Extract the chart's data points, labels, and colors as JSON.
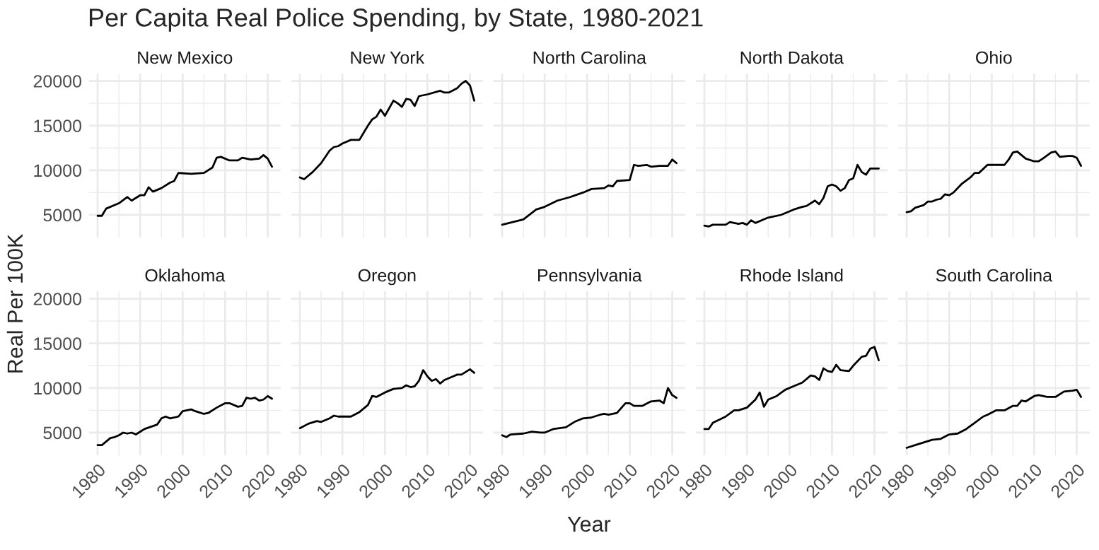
{
  "chart_data": [
    {
      "type": "line",
      "title": "New Mexico",
      "annotations": [
        "Per Capita Real Police Spending, by State, 1980-2021"
      ],
      "color": "#000000",
      "x": [
        1980,
        1981,
        1982,
        1985,
        1987,
        1988,
        1990,
        1991,
        1992,
        1993,
        1995,
        1997,
        1998,
        1999,
        2002,
        2005,
        2007,
        2008,
        2009,
        2011,
        2013,
        2014,
        2016,
        2018,
        2019,
        2020,
        2021
      ],
      "values": [
        4900,
        4900,
        5700,
        6300,
        7000,
        6600,
        7200,
        7200,
        8100,
        7600,
        8000,
        8600,
        8800,
        9700,
        9600,
        9700,
        10300,
        11400,
        11500,
        11100,
        11100,
        11400,
        11200,
        11300,
        11700,
        11300,
        10400
      ],
      "xlim": [
        1977.95,
        2023.05
      ],
      "ylim": [
        2465,
        20835
      ],
      "xticks": [
        1980,
        1990,
        2000,
        2010,
        2020
      ],
      "yticks": [
        5000,
        10000,
        15000,
        20000
      ],
      "grid": true,
      "tick_labels": "y"
    },
    {
      "type": "line",
      "title": "New York",
      "color": "#000000",
      "x": [
        1980,
        1981,
        1983,
        1985,
        1987,
        1988,
        1989,
        1990,
        1992,
        1994,
        1996,
        1997,
        1998,
        1999,
        2000,
        2002,
        2003,
        2004,
        2005,
        2006,
        2007,
        2008,
        2010,
        2013,
        2014,
        2015,
        2017,
        2018,
        2019,
        2020,
        2021
      ],
      "values": [
        9200,
        9000,
        9800,
        10800,
        12200,
        12600,
        12700,
        13000,
        13400,
        13400,
        15000,
        15700,
        16000,
        16800,
        16100,
        17800,
        17500,
        17100,
        18000,
        17900,
        17200,
        18300,
        18500,
        18900,
        18700,
        18700,
        19200,
        19700,
        20000,
        19500,
        17800
      ],
      "xlim": [
        1977.95,
        2023.05
      ],
      "ylim": [
        2465,
        20835
      ],
      "xticks": [
        1980,
        1990,
        2000,
        2010,
        2020
      ],
      "yticks": [
        5000,
        10000,
        15000,
        20000
      ],
      "grid": true,
      "tick_labels": false
    },
    {
      "type": "line",
      "title": "North Carolina",
      "color": "#000000",
      "x": [
        1980,
        1985,
        1988,
        1990,
        1993,
        1996,
        1999,
        2001,
        2004,
        2005,
        2006,
        2007,
        2010,
        2011,
        2012,
        2014,
        2015,
        2017,
        2019,
        2020,
        2021
      ],
      "values": [
        3900,
        4500,
        5600,
        5900,
        6600,
        7000,
        7500,
        7900,
        8000,
        8300,
        8200,
        8800,
        8900,
        10600,
        10500,
        10600,
        10400,
        10500,
        10500,
        11200,
        10800
      ],
      "xlim": [
        1977.95,
        2023.05
      ],
      "ylim": [
        2465,
        20835
      ],
      "xticks": [
        1980,
        1990,
        2000,
        2010,
        2020
      ],
      "yticks": [
        5000,
        10000,
        15000,
        20000
      ],
      "grid": true,
      "tick_labels": false
    },
    {
      "type": "line",
      "title": "North Dakota",
      "color": "#000000",
      "x": [
        1980,
        1981,
        1982,
        1985,
        1986,
        1988,
        1989,
        1990,
        1991,
        1992,
        1994,
        1995,
        1998,
        2001,
        2003,
        2004,
        2006,
        2007,
        2008,
        2009,
        2010,
        2011,
        2012,
        2013,
        2014,
        2015,
        2016,
        2017,
        2018,
        2019,
        2021
      ],
      "values": [
        3800,
        3700,
        3900,
        3900,
        4200,
        4000,
        4100,
        3900,
        4400,
        4100,
        4500,
        4700,
        5000,
        5600,
        5900,
        6000,
        6600,
        6200,
        6900,
        8200,
        8400,
        8200,
        7700,
        8000,
        8900,
        9100,
        10600,
        9800,
        9500,
        10200,
        10200
      ],
      "xlim": [
        1977.95,
        2023.05
      ],
      "ylim": [
        2465,
        20835
      ],
      "xticks": [
        1980,
        1990,
        2000,
        2010,
        2020
      ],
      "yticks": [
        5000,
        10000,
        15000,
        20000
      ],
      "grid": true,
      "tick_labels": false
    },
    {
      "type": "line",
      "title": "Ohio",
      "color": "#000000",
      "x": [
        1980,
        1981,
        1982,
        1984,
        1985,
        1986,
        1987,
        1988,
        1989,
        1990,
        1991,
        1993,
        1995,
        1996,
        1997,
        1999,
        2003,
        2004,
        2005,
        2006,
        2008,
        2010,
        2011,
        2012,
        2014,
        2015,
        2016,
        2018,
        2019,
        2020,
        2021
      ],
      "values": [
        5300,
        5400,
        5800,
        6100,
        6500,
        6500,
        6700,
        6800,
        7300,
        7200,
        7500,
        8500,
        9200,
        9700,
        9700,
        10600,
        10600,
        11200,
        12000,
        12100,
        11300,
        11000,
        11000,
        11300,
        12000,
        12100,
        11500,
        11600,
        11600,
        11400,
        10500
      ],
      "xlim": [
        1977.95,
        2023.05
      ],
      "ylim": [
        2465,
        20835
      ],
      "xticks": [
        1980,
        1990,
        2000,
        2010,
        2020
      ],
      "yticks": [
        5000,
        10000,
        15000,
        20000
      ],
      "grid": true,
      "tick_labels": false
    },
    {
      "type": "line",
      "title": "Oklahoma",
      "ylabel": "Real Per 100K",
      "color": "#000000",
      "x": [
        1980,
        1981,
        1983,
        1984,
        1985,
        1986,
        1987,
        1988,
        1989,
        1990,
        1991,
        1994,
        1995,
        1996,
        1997,
        1999,
        2000,
        2002,
        2003,
        2005,
        2006,
        2008,
        2010,
        2011,
        2013,
        2014,
        2015,
        2016,
        2017,
        2018,
        2019,
        2020,
        2021
      ],
      "values": [
        3600,
        3600,
        4400,
        4500,
        4700,
        5000,
        4900,
        5000,
        4800,
        5100,
        5400,
        5900,
        6600,
        6800,
        6600,
        6800,
        7400,
        7600,
        7400,
        7100,
        7200,
        7800,
        8300,
        8300,
        7900,
        8000,
        8900,
        8800,
        8900,
        8600,
        8700,
        9100,
        8800
      ],
      "xlim": [
        1977.95,
        2023.05
      ],
      "ylim": [
        2465,
        20835
      ],
      "xticks": [
        1980,
        1990,
        2000,
        2010,
        2020
      ],
      "yticks": [
        5000,
        10000,
        15000,
        20000
      ],
      "grid": true
    },
    {
      "type": "line",
      "title": "Oregon",
      "color": "#000000",
      "x": [
        1980,
        1982,
        1984,
        1985,
        1987,
        1988,
        1989,
        1990,
        1992,
        1994,
        1996,
        1997,
        1998,
        2000,
        2002,
        2004,
        2005,
        2006,
        2007,
        2008,
        2009,
        2010,
        2011,
        2012,
        2013,
        2014,
        2016,
        2017,
        2018,
        2020,
        2021
      ],
      "values": [
        5500,
        6000,
        6300,
        6200,
        6600,
        6900,
        6800,
        6800,
        6800,
        7300,
        8100,
        9100,
        9000,
        9500,
        9900,
        10000,
        10300,
        10100,
        10200,
        10800,
        12000,
        11300,
        10800,
        11000,
        10500,
        10900,
        11300,
        11500,
        11500,
        12100,
        11700
      ],
      "xlim": [
        1977.95,
        2023.05
      ],
      "ylim": [
        2465,
        20835
      ],
      "xticks": [
        1980,
        1990,
        2000,
        2010,
        2020
      ],
      "yticks": [
        5000,
        10000,
        15000,
        20000
      ],
      "grid": true,
      "tick_labels": "x"
    },
    {
      "type": "line",
      "title": "Pennsylvania",
      "xlabel": "Year",
      "color": "#000000",
      "x": [
        1980,
        1981,
        1982,
        1985,
        1987,
        1989,
        1990,
        1992,
        1995,
        1997,
        1999,
        2001,
        2003,
        2004,
        2005,
        2007,
        2009,
        2010,
        2011,
        2013,
        2015,
        2017,
        2018,
        2019,
        2020,
        2021
      ],
      "values": [
        4700,
        4500,
        4800,
        4900,
        5100,
        5000,
        5000,
        5400,
        5600,
        6200,
        6600,
        6700,
        7000,
        7100,
        7000,
        7200,
        8300,
        8300,
        8000,
        8000,
        8500,
        8600,
        8300,
        10000,
        9200,
        8900
      ],
      "xlim": [
        1977.95,
        2023.05
      ],
      "ylim": [
        2465,
        20835
      ],
      "xticks": [
        1980,
        1990,
        2000,
        2010,
        2020
      ],
      "yticks": [
        5000,
        10000,
        15000,
        20000
      ],
      "grid": true,
      "tick_labels": "x"
    },
    {
      "type": "line",
      "title": "Rhode Island",
      "color": "#000000",
      "x": [
        1980,
        1981,
        1982,
        1985,
        1987,
        1988,
        1990,
        1992,
        1993,
        1994,
        1995,
        1997,
        1999,
        2001,
        2003,
        2005,
        2006,
        2007,
        2008,
        2009,
        2010,
        2011,
        2012,
        2014,
        2015,
        2017,
        2018,
        2019,
        2020,
        2021
      ],
      "values": [
        5400,
        5400,
        6100,
        6800,
        7500,
        7500,
        7800,
        8700,
        9500,
        7900,
        8700,
        9100,
        9800,
        10200,
        10600,
        11400,
        11300,
        10900,
        12200,
        11900,
        11800,
        12600,
        12000,
        11900,
        12500,
        13500,
        13600,
        14400,
        14600,
        13100
      ],
      "xlim": [
        1977.95,
        2023.05
      ],
      "ylim": [
        2465,
        20835
      ],
      "xticks": [
        1980,
        1990,
        2000,
        2010,
        2020
      ],
      "yticks": [
        5000,
        10000,
        15000,
        20000
      ],
      "grid": true,
      "tick_labels": "x"
    },
    {
      "type": "line",
      "title": "South Carolina",
      "color": "#000000",
      "x": [
        1980,
        1982,
        1984,
        1986,
        1988,
        1990,
        1992,
        1994,
        1996,
        1998,
        1999,
        2001,
        2003,
        2005,
        2006,
        2007,
        2008,
        2010,
        2011,
        2013,
        2015,
        2017,
        2019,
        2020,
        2021
      ],
      "values": [
        3300,
        3600,
        3900,
        4200,
        4300,
        4800,
        4900,
        5400,
        6100,
        6800,
        7000,
        7500,
        7500,
        8000,
        8000,
        8600,
        8500,
        9100,
        9200,
        9000,
        9000,
        9600,
        9700,
        9800,
        9000
      ],
      "xlim": [
        1977.95,
        2023.05
      ],
      "ylim": [
        2465,
        20835
      ],
      "xticks": [
        1980,
        1990,
        2000,
        2010,
        2020
      ],
      "yticks": [
        5000,
        10000,
        15000,
        20000
      ],
      "grid": true,
      "tick_labels": "x"
    }
  ]
}
